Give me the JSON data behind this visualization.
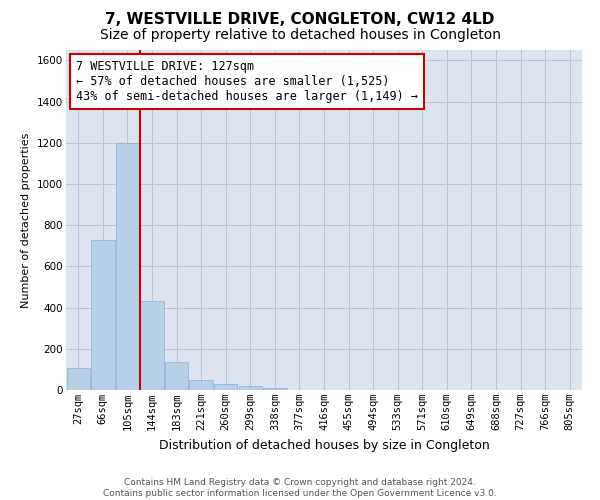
{
  "title": "7, WESTVILLE DRIVE, CONGLETON, CW12 4LD",
  "subtitle": "Size of property relative to detached houses in Congleton",
  "xlabel": "Distribution of detached houses by size in Congleton",
  "ylabel": "Number of detached properties",
  "bar_color": "#b8cfe8",
  "bar_edge_color": "#8aafd4",
  "background_color": "#ffffff",
  "plot_bg_color": "#dde4f0",
  "grid_color": "#b8c4d8",
  "categories": [
    "27sqm",
    "66sqm",
    "105sqm",
    "144sqm",
    "183sqm",
    "221sqm",
    "260sqm",
    "299sqm",
    "338sqm",
    "377sqm",
    "416sqm",
    "455sqm",
    "494sqm",
    "533sqm",
    "571sqm",
    "610sqm",
    "649sqm",
    "688sqm",
    "727sqm",
    "766sqm",
    "805sqm"
  ],
  "values": [
    105,
    730,
    1200,
    430,
    135,
    50,
    28,
    20,
    10,
    0,
    0,
    0,
    0,
    0,
    0,
    0,
    0,
    0,
    0,
    0,
    0
  ],
  "ylim": [
    0,
    1650
  ],
  "yticks": [
    0,
    200,
    400,
    600,
    800,
    1000,
    1200,
    1400,
    1600
  ],
  "vline_x_index": 2.5,
  "vline_color": "#cc0000",
  "annotation_text": "7 WESTVILLE DRIVE: 127sqm\n← 57% of detached houses are smaller (1,525)\n43% of semi-detached houses are larger (1,149) →",
  "annotation_box_color": "#ffffff",
  "annotation_box_edge": "#cc0000",
  "footer_text": "Contains HM Land Registry data © Crown copyright and database right 2024.\nContains public sector information licensed under the Open Government Licence v3.0.",
  "title_fontsize": 11,
  "subtitle_fontsize": 10,
  "xlabel_fontsize": 9,
  "ylabel_fontsize": 8,
  "tick_fontsize": 7.5,
  "annotation_fontsize": 8.5,
  "footer_fontsize": 6.5
}
